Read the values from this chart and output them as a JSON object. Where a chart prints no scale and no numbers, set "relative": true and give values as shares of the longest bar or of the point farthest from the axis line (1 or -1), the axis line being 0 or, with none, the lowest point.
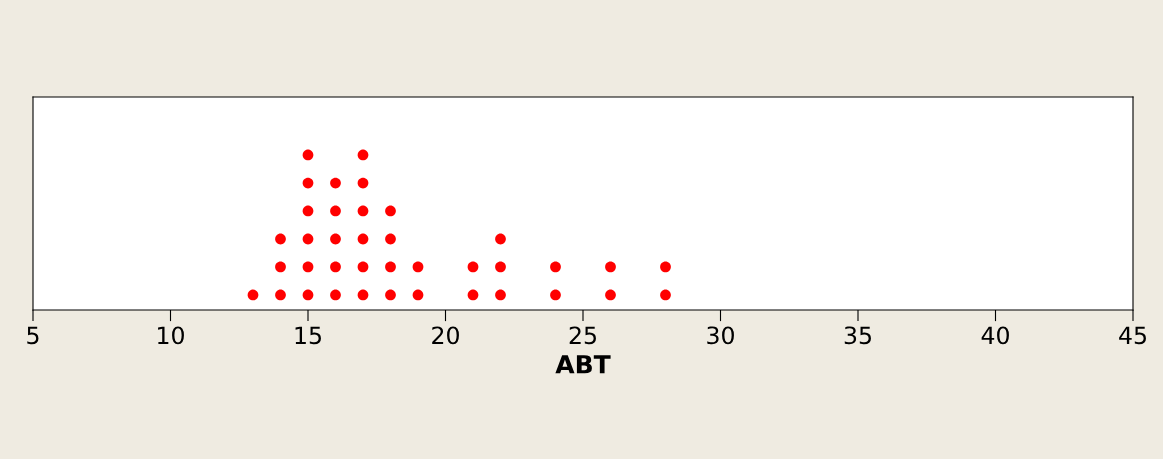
{
  "chart_data": {
    "type": "scatter",
    "xlabel": "ABT",
    "xlim": [
      5,
      45
    ],
    "xticks": [
      5,
      10,
      15,
      20,
      25,
      30,
      35,
      40,
      45
    ],
    "relative": true,
    "tick_labels": "x",
    "grid": false,
    "legend": false,
    "marker": "circle",
    "series": [
      {
        "color": "#ff0000",
        "x": [
          13,
          14,
          14,
          14,
          15,
          15,
          15,
          15,
          15,
          15,
          16,
          16,
          16,
          16,
          16,
          17,
          17,
          17,
          17,
          17,
          17,
          18,
          18,
          18,
          18,
          19,
          19,
          21,
          21,
          22,
          22,
          22,
          24,
          24,
          26,
          26,
          28,
          28
        ],
        "values": [
          0.097,
          0.097,
          0.278,
          0.458,
          0.097,
          0.278,
          0.458,
          0.639,
          0.819,
          1,
          0.097,
          0.278,
          0.458,
          0.639,
          0.819,
          0.097,
          0.278,
          0.458,
          0.639,
          0.819,
          1,
          0.097,
          0.278,
          0.458,
          0.639,
          0.097,
          0.278,
          0.097,
          0.278,
          0.097,
          0.278,
          0.458,
          0.097,
          0.278,
          0.097,
          0.278,
          0.097,
          0.278
        ]
      }
    ]
  }
}
